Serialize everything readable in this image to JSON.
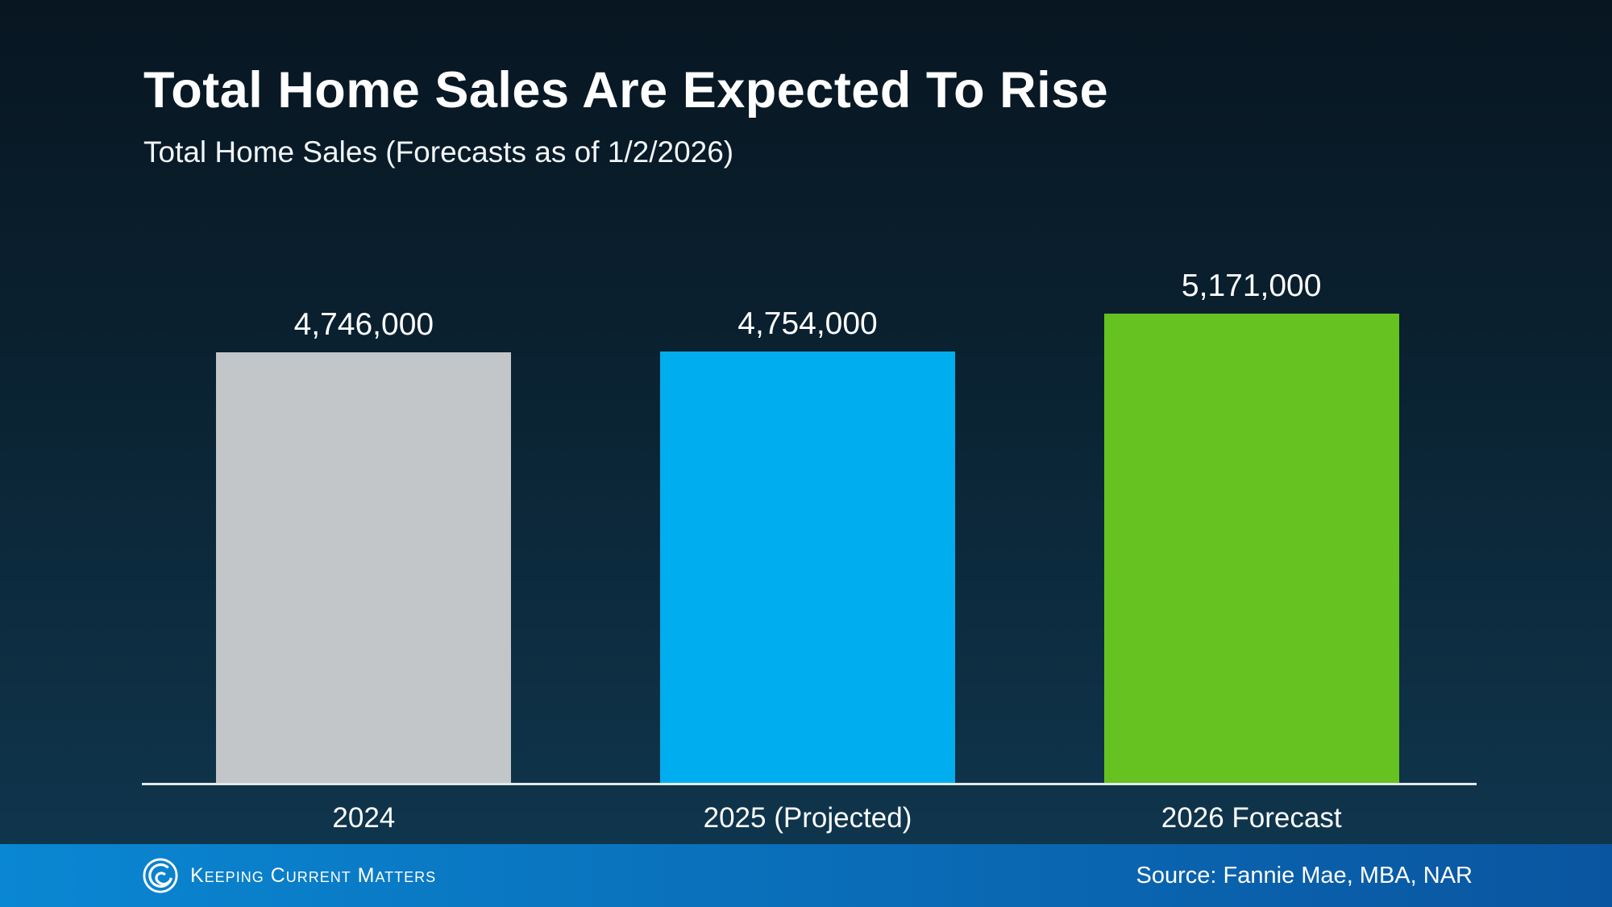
{
  "slide": {
    "title": "Total Home Sales Are Expected To Rise",
    "subtitle": "Total Home Sales (Forecasts as of 1/2/2026)"
  },
  "chart_data": {
    "type": "bar",
    "title": "Total Home Sales (Forecasts as of 1/2/2026)",
    "categories": [
      "2024",
      "2025 (Projected)",
      "2026 Forecast"
    ],
    "values": [
      4746000,
      4754000,
      5171000
    ],
    "value_labels": [
      "4,746,000",
      "4,754,000",
      "5,171,000"
    ],
    "bar_colors": [
      "#c2c6c9",
      "#00aeef",
      "#66c221"
    ],
    "xlabel": "",
    "ylabel": "",
    "ylim": [
      0,
      5600000
    ],
    "grid": false,
    "legend": false,
    "annotations": []
  },
  "footer": {
    "brand": "Keeping Current Matters",
    "source": "Source: Fannie Mae, MBA, NAR",
    "logo_icon": "kcm-swirl-logo",
    "background_gradient": [
      "#0a87d2",
      "#0a55a0"
    ]
  },
  "colors": {
    "background_top": "#081621",
    "background_bottom": "#103850",
    "axis_line": "#e4e9ec",
    "text": "#ffffff"
  }
}
